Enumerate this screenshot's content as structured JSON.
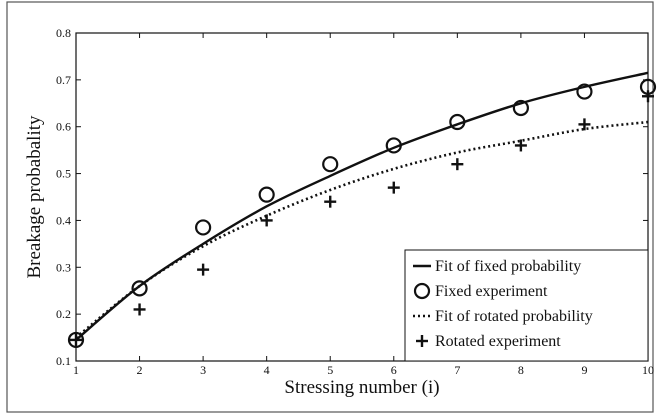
{
  "chart_data": {
    "type": "line",
    "xlabel": "Stressing number (i)",
    "ylabel": "Breakage probabality",
    "xlim": [
      1,
      10
    ],
    "ylim": [
      0.1,
      0.8
    ],
    "x_ticks": [
      1,
      2,
      3,
      4,
      5,
      6,
      7,
      8,
      9,
      10
    ],
    "y_ticks": [
      0.1,
      0.2,
      0.3,
      0.4,
      0.5,
      0.6,
      0.7,
      0.8
    ],
    "grid": false,
    "legend_position": "bottom-right",
    "series": [
      {
        "name": "Fit of fixed probability",
        "kind": "line",
        "style": "solid",
        "color": "#111111",
        "x": [
          1,
          2,
          3,
          4,
          5,
          6,
          7,
          8,
          9,
          10
        ],
        "y": [
          0.145,
          0.26,
          0.35,
          0.43,
          0.495,
          0.555,
          0.605,
          0.65,
          0.685,
          0.715
        ]
      },
      {
        "name": "Fixed experiment",
        "kind": "marker",
        "marker": "circle",
        "color": "#111111",
        "x": [
          1,
          2,
          3,
          4,
          5,
          6,
          7,
          8,
          9,
          10
        ],
        "y": [
          0.145,
          0.255,
          0.385,
          0.455,
          0.52,
          0.56,
          0.61,
          0.64,
          0.675,
          0.685
        ]
      },
      {
        "name": "Fit of rotated probability",
        "kind": "line",
        "style": "dotted",
        "color": "#111111",
        "x": [
          1,
          2,
          3,
          4,
          5,
          6,
          7,
          8,
          9,
          10
        ],
        "y": [
          0.15,
          0.26,
          0.345,
          0.41,
          0.465,
          0.51,
          0.545,
          0.57,
          0.595,
          0.61
        ]
      },
      {
        "name": "Rotated experiment",
        "kind": "marker",
        "marker": "plus",
        "color": "#111111",
        "x": [
          1,
          2,
          3,
          4,
          5,
          6,
          7,
          8,
          9,
          10
        ],
        "y": [
          0.145,
          0.21,
          0.295,
          0.4,
          0.44,
          0.47,
          0.52,
          0.56,
          0.605,
          0.665
        ]
      }
    ]
  }
}
